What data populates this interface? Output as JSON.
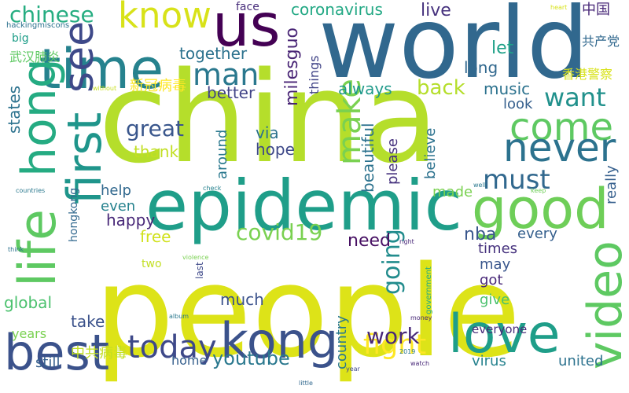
{
  "word_cloud": {
    "background": "#ffffff",
    "words": [
      {
        "text": "people",
        "color": "#dde318"
      },
      {
        "text": "china",
        "color": "#b5de2b"
      },
      {
        "text": "world",
        "color": "#31688e"
      },
      {
        "text": "epidemic",
        "color": "#1f9e89"
      },
      {
        "text": "us",
        "color": "#440154"
      },
      {
        "text": "time",
        "color": "#26828e"
      },
      {
        "text": "know",
        "color": "#d8e219"
      },
      {
        "text": "hong",
        "color": "#25ab82"
      },
      {
        "text": "life",
        "color": "#5ec962"
      },
      {
        "text": "first",
        "color": "#1f958b"
      },
      {
        "text": "see",
        "color": "#3e4989"
      },
      {
        "text": "kong",
        "color": "#3b528b"
      },
      {
        "text": "best",
        "color": "#3b528b"
      },
      {
        "text": "good",
        "color": "#6ece58"
      },
      {
        "text": "come",
        "color": "#5ec962"
      },
      {
        "text": "never",
        "color": "#2c728e"
      },
      {
        "text": "love",
        "color": "#1f9e89"
      },
      {
        "text": "video",
        "color": "#5ec962"
      },
      {
        "text": "today",
        "color": "#3e4989"
      },
      {
        "text": "man",
        "color": "#2a788e"
      },
      {
        "text": "make",
        "color": "#7ad151"
      },
      {
        "text": "must",
        "color": "#31688e"
      },
      {
        "text": "want",
        "color": "#21918c"
      },
      {
        "text": "great",
        "color": "#39568c"
      },
      {
        "text": "covid19",
        "color": "#7ad151"
      },
      {
        "text": "fight",
        "color": "#fde725"
      },
      {
        "text": "work",
        "color": "#482878"
      },
      {
        "text": "chinese",
        "color": "#26ad81"
      },
      {
        "text": "coronavirus",
        "color": "#22a884"
      },
      {
        "text": "youtube",
        "color": "#2a788e"
      },
      {
        "text": "milesguo",
        "color": "#482475"
      },
      {
        "text": "going",
        "color": "#228c8d"
      },
      {
        "text": "back",
        "color": "#b5de2b"
      },
      {
        "text": "need",
        "color": "#471063"
      },
      {
        "text": "music",
        "color": "#2c728e"
      },
      {
        "text": "live",
        "color": "#46327e"
      },
      {
        "text": "let",
        "color": "#1fa188"
      },
      {
        "text": "long",
        "color": "#31688e"
      },
      {
        "text": "nba",
        "color": "#39568c"
      },
      {
        "text": "beautiful",
        "color": "#2c728e"
      },
      {
        "text": "hope",
        "color": "#3e4989"
      },
      {
        "text": "via",
        "color": "#2c728e"
      },
      {
        "text": "thank",
        "color": "#c2df23"
      },
      {
        "text": "better",
        "color": "#414487"
      },
      {
        "text": "always",
        "color": "#1f9a8a"
      },
      {
        "text": "together",
        "color": "#2c728e"
      },
      {
        "text": "happy",
        "color": "#482878"
      },
      {
        "text": "much",
        "color": "#3b528b"
      },
      {
        "text": "take",
        "color": "#3b528b"
      },
      {
        "text": "free",
        "color": "#d0e11c"
      },
      {
        "text": "global",
        "color": "#4ac16d"
      },
      {
        "text": "states",
        "color": "#2c728e"
      },
      {
        "text": "things",
        "color": "#414487"
      },
      {
        "text": "look",
        "color": "#355f8d"
      },
      {
        "text": "believe",
        "color": "#2c728e"
      },
      {
        "text": "please",
        "color": "#46327e"
      },
      {
        "text": "around",
        "color": "#2a788e"
      },
      {
        "text": "help",
        "color": "#31688e"
      },
      {
        "text": "even",
        "color": "#26828e"
      },
      {
        "text": "made",
        "color": "#7ad151"
      },
      {
        "text": "really",
        "color": "#355f8d"
      },
      {
        "text": "every",
        "color": "#355f8d"
      },
      {
        "text": "may",
        "color": "#39568c"
      },
      {
        "text": "got",
        "color": "#482878"
      },
      {
        "text": "times",
        "color": "#46327e"
      },
      {
        "text": "give",
        "color": "#4ac16d"
      },
      {
        "text": "country",
        "color": "#2a788e"
      },
      {
        "text": "united",
        "color": "#2c728e"
      },
      {
        "text": "virus",
        "color": "#26828e"
      },
      {
        "text": "still",
        "color": "#355f8d"
      },
      {
        "text": "home",
        "color": "#355f8d"
      },
      {
        "text": "years",
        "color": "#7ad151"
      },
      {
        "text": "everyone",
        "color": "#472c7a"
      },
      {
        "text": "hongkong",
        "color": "#31688e"
      },
      {
        "text": "two",
        "color": "#c2df23"
      },
      {
        "text": "face",
        "color": "#472c7a"
      },
      {
        "text": "big",
        "color": "#1f9e89"
      },
      {
        "text": "hackingmiscons",
        "color": "#2c728e"
      },
      {
        "text": "without",
        "color": "#c8e020"
      },
      {
        "text": "heart",
        "color": "#d8e219"
      },
      {
        "text": "countries",
        "color": "#2a788e"
      },
      {
        "text": "check",
        "color": "#26828e"
      },
      {
        "text": "well",
        "color": "#2a788e"
      },
      {
        "text": "keep",
        "color": "#6ece58"
      },
      {
        "text": "violence",
        "color": "#7ad151"
      },
      {
        "text": "right",
        "color": "#482878"
      },
      {
        "text": "think",
        "color": "#2c728e"
      },
      {
        "text": "last",
        "color": "#3e4989"
      },
      {
        "text": "government",
        "color": "#25ac82"
      },
      {
        "text": "album",
        "color": "#2a788e"
      },
      {
        "text": "money",
        "color": "#482878"
      },
      {
        "text": "2019",
        "color": "#2a788e"
      },
      {
        "text": "year",
        "color": "#3e4989"
      },
      {
        "text": "little",
        "color": "#31688e"
      },
      {
        "text": "watch",
        "color": "#482878"
      },
      {
        "text": "中国",
        "color": "#482878"
      },
      {
        "text": "武汉肺炎",
        "color": "#5ec962"
      },
      {
        "text": "新冠病毒",
        "color": "#fde725"
      },
      {
        "text": "共产党",
        "color": "#31688e"
      },
      {
        "text": "香港警察",
        "color": "#d8e219"
      },
      {
        "text": "中共病毒",
        "color": "#c2df23"
      }
    ]
  }
}
